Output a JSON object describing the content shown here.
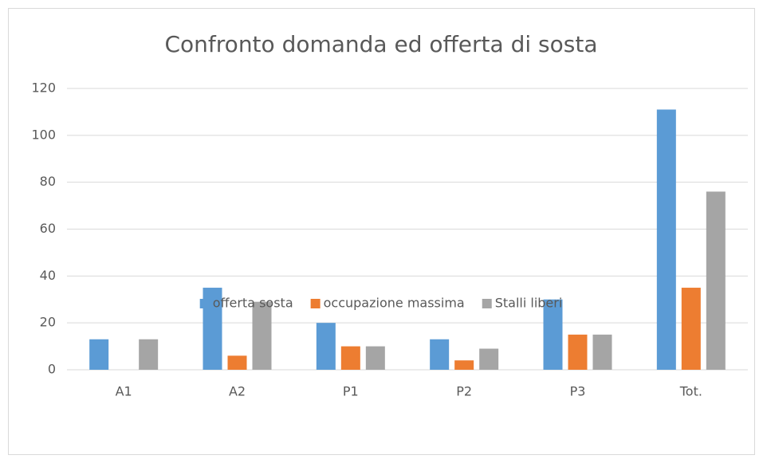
{
  "chart_data": {
    "type": "bar",
    "title": "Confronto domanda ed offerta di sosta",
    "categories": [
      "A1",
      "A2",
      "P1",
      "P2",
      "P3",
      "Tot."
    ],
    "series": [
      {
        "name": "offerta sosta",
        "color": "#5b9bd5",
        "values": [
          13,
          35,
          20,
          13,
          30,
          111
        ]
      },
      {
        "name": "occupazione massima",
        "color": "#ed7d31",
        "values": [
          0,
          6,
          10,
          4,
          15,
          35
        ]
      },
      {
        "name": "Stalli liberi",
        "color": "#a5a5a5",
        "values": [
          13,
          29,
          10,
          9,
          15,
          76
        ]
      }
    ],
    "ylim": [
      0,
      120
    ],
    "yticks": [
      0,
      20,
      40,
      60,
      80,
      100,
      120
    ],
    "grid": true,
    "legend": "bottom"
  }
}
